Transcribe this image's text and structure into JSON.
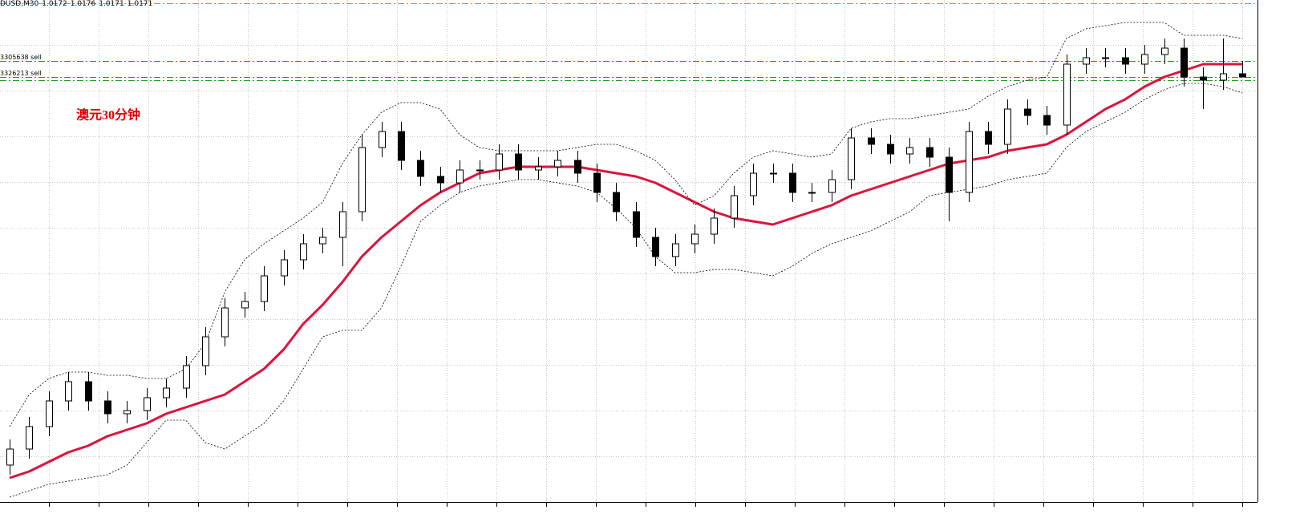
{
  "header": {
    "symbol": "DUSD,M30",
    "ohlc": [
      1.0172,
      1.0176,
      1.0171,
      1.0171
    ]
  },
  "chart_data": {
    "type": "candlestick",
    "annotation": "澳元30分钟",
    "ylim": [
      1.0038,
      1.0195
    ],
    "bull_color": "#ffffff",
    "bear_color": "#000000",
    "open": [
      1.005,
      1.0055,
      1.0062,
      1.007,
      1.0076,
      1.007,
      1.0066,
      1.0067,
      1.0071,
      1.0074,
      1.0081,
      1.009,
      1.0099,
      1.0101,
      1.0109,
      1.0114,
      1.0119,
      1.0121,
      1.0129,
      1.0149,
      1.0154,
      1.0145,
      1.014,
      1.0138,
      1.0142,
      1.0142,
      1.0147,
      1.0142,
      1.0143,
      1.0145,
      1.0141,
      1.0135,
      1.0129,
      1.0121,
      1.0115,
      1.0119,
      1.0122,
      1.0127,
      1.0134,
      1.0141,
      1.0141,
      1.0135,
      1.0135,
      1.0139,
      1.0152,
      1.015,
      1.0147,
      1.0149,
      1.0146,
      1.0135,
      1.0154,
      1.015,
      1.0161,
      1.0159,
      1.0156,
      1.0175,
      1.0177,
      1.0177,
      1.0175,
      1.0178,
      1.018,
      1.0171,
      1.017,
      1.0172
    ],
    "high": [
      1.0058,
      1.0065,
      1.0073,
      1.0079,
      1.0079,
      1.0073,
      1.007,
      1.0074,
      1.0077,
      1.0084,
      1.0093,
      1.0102,
      1.0104,
      1.0112,
      1.0117,
      1.0122,
      1.0124,
      1.0132,
      1.0153,
      1.0157,
      1.0157,
      1.0148,
      1.0143,
      1.0145,
      1.0145,
      1.015,
      1.015,
      1.0146,
      1.0148,
      1.0148,
      1.0144,
      1.0138,
      1.0132,
      1.0124,
      1.0122,
      1.0125,
      1.013,
      1.0137,
      1.0144,
      1.0144,
      1.0144,
      1.0138,
      1.0142,
      1.0155,
      1.0155,
      1.0153,
      1.0152,
      1.0152,
      1.0149,
      1.0157,
      1.0157,
      1.0164,
      1.0164,
      1.0162,
      1.0178,
      1.018,
      1.018,
      1.018,
      1.0181,
      1.0183,
      1.0183,
      1.0174,
      1.0183,
      1.0176
    ],
    "low": [
      1.0047,
      1.0052,
      1.0059,
      1.0067,
      1.0067,
      1.0063,
      1.0063,
      1.0064,
      1.0068,
      1.0071,
      1.0078,
      1.0087,
      1.0096,
      1.0098,
      1.0106,
      1.0111,
      1.0116,
      1.0112,
      1.0126,
      1.0146,
      1.0142,
      1.0137,
      1.0135,
      1.0135,
      1.0139,
      1.0139,
      1.0139,
      1.0139,
      1.014,
      1.0138,
      1.0132,
      1.0126,
      1.0118,
      1.0112,
      1.0112,
      1.0116,
      1.0119,
      1.0124,
      1.0131,
      1.0138,
      1.0132,
      1.0132,
      1.0132,
      1.0136,
      1.0147,
      1.0144,
      1.0144,
      1.0143,
      1.0126,
      1.0132,
      1.0147,
      1.0147,
      1.0156,
      1.0153,
      1.0153,
      1.0172,
      1.0174,
      1.0172,
      1.0172,
      1.0175,
      1.0168,
      1.0161,
      1.0167,
      1.0171
    ],
    "close": [
      1.0055,
      1.0062,
      1.007,
      1.0076,
      1.007,
      1.0066,
      1.0067,
      1.0071,
      1.0074,
      1.0081,
      1.009,
      1.0099,
      1.0101,
      1.0109,
      1.0114,
      1.0119,
      1.0121,
      1.0129,
      1.0149,
      1.0154,
      1.0145,
      1.014,
      1.0138,
      1.0142,
      1.0142,
      1.0147,
      1.0142,
      1.0143,
      1.0145,
      1.0141,
      1.0135,
      1.0129,
      1.0121,
      1.0115,
      1.0119,
      1.0122,
      1.0127,
      1.0134,
      1.0141,
      1.0141,
      1.0135,
      1.0135,
      1.0139,
      1.0152,
      1.015,
      1.0147,
      1.0149,
      1.0146,
      1.0135,
      1.0154,
      1.015,
      1.0161,
      1.0159,
      1.0156,
      1.0175,
      1.0177,
      1.0177,
      1.0175,
      1.0178,
      1.018,
      1.0171,
      1.017,
      1.0172,
      1.0171
    ],
    "overlays": [
      {
        "color": "#dc143c",
        "width": 3,
        "dashed": false,
        "values": [
          1.0046,
          1.0048,
          1.0051,
          1.0054,
          1.0056,
          1.0059,
          1.0061,
          1.0063,
          1.0066,
          1.0068,
          1.007,
          1.0072,
          1.0076,
          1.008,
          1.0086,
          1.0094,
          1.01,
          1.0107,
          1.0115,
          1.0121,
          1.0126,
          1.0131,
          1.0135,
          1.0138,
          1.0141,
          1.0142,
          1.0143,
          1.0143,
          1.0143,
          1.0143,
          1.0142,
          1.0141,
          1.014,
          1.0138,
          1.0135,
          1.0132,
          1.0129,
          1.0127,
          1.0126,
          1.0125,
          1.0127,
          1.0129,
          1.0131,
          1.0134,
          1.0136,
          1.0138,
          1.014,
          1.0142,
          1.0144,
          1.0145,
          1.0146,
          1.0148,
          1.0149,
          1.015,
          1.0153,
          1.0157,
          1.0161,
          1.0164,
          1.0168,
          1.0171,
          1.0173,
          1.0175,
          1.0175,
          1.0175
        ]
      },
      {
        "color": "#000000",
        "width": 0.8,
        "dashed": true,
        "values": [
          1.0062,
          1.0072,
          1.0077,
          1.0079,
          1.0079,
          1.0078,
          1.0078,
          1.0077,
          1.0077,
          1.008,
          1.0088,
          1.0104,
          1.0114,
          1.0119,
          1.0123,
          1.0127,
          1.0132,
          1.0144,
          1.0153,
          1.016,
          1.0163,
          1.0163,
          1.0161,
          1.0153,
          1.0149,
          1.0148,
          1.0148,
          1.0148,
          1.0148,
          1.0149,
          1.015,
          1.015,
          1.0148,
          1.0145,
          1.0139,
          1.0131,
          1.0134,
          1.0141,
          1.0146,
          1.0148,
          1.0147,
          1.0146,
          1.0147,
          1.0155,
          1.0157,
          1.0158,
          1.0158,
          1.0159,
          1.016,
          1.0161,
          1.0165,
          1.0168,
          1.017,
          1.0171,
          1.0183,
          1.0186,
          1.0187,
          1.0188,
          1.0188,
          1.0188,
          1.0184,
          1.0184,
          1.0184,
          1.0183
        ]
      },
      {
        "color": "#000000",
        "width": 0.8,
        "dashed": true,
        "values": [
          1.004,
          1.0042,
          1.0044,
          1.0045,
          1.0046,
          1.0047,
          1.005,
          1.0057,
          1.0064,
          1.0064,
          1.0057,
          1.0055,
          1.0059,
          1.0063,
          1.007,
          1.008,
          1.009,
          1.0092,
          1.0092,
          1.0099,
          1.0112,
          1.0126,
          1.0131,
          1.0135,
          1.0137,
          1.0138,
          1.0139,
          1.0139,
          1.0138,
          1.0137,
          1.0135,
          1.013,
          1.0124,
          1.0115,
          1.011,
          1.011,
          1.0111,
          1.0111,
          1.011,
          1.0109,
          1.0112,
          1.0116,
          1.0119,
          1.0121,
          1.0123,
          1.0126,
          1.0129,
          1.0134,
          1.0135,
          1.0136,
          1.0137,
          1.0139,
          1.014,
          1.0141,
          1.0149,
          1.0154,
          1.0157,
          1.016,
          1.0164,
          1.0167,
          1.0169,
          1.0169,
          1.0168,
          1.0166
        ]
      }
    ],
    "levels": [
      {
        "value": 1.0194,
        "color": "#ff7f27"
      },
      {
        "value": 1.0176,
        "color": "#1f9e1f",
        "label": "3305638 sell"
      },
      {
        "value": 1.0171,
        "color": "#1f9e1f",
        "label": "3326213 sell"
      },
      {
        "value": 1.017,
        "color": "#1f9e1f"
      }
    ]
  }
}
